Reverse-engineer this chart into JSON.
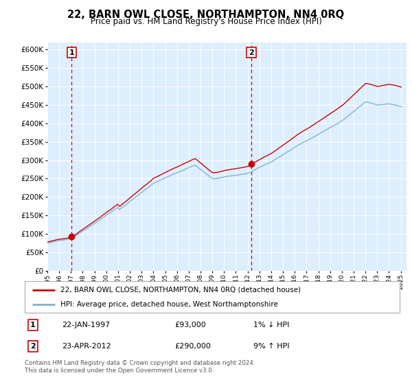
{
  "title": "22, BARN OWL CLOSE, NORTHAMPTON, NN4 0RQ",
  "subtitle": "Price paid vs. HM Land Registry's House Price Index (HPI)",
  "legend_line1": "22, BARN OWL CLOSE, NORTHAMPTON, NN4 0RQ (detached house)",
  "legend_line2": "HPI: Average price, detached house, West Northamptonshire",
  "footer": "Contains HM Land Registry data © Crown copyright and database right 2024.\nThis data is licensed under the Open Government Licence v3.0.",
  "sale1_label": "1",
  "sale1_date": "22-JAN-1997",
  "sale1_price": "£93,000",
  "sale1_hpi": "1% ↓ HPI",
  "sale2_label": "2",
  "sale2_date": "23-APR-2012",
  "sale2_price": "£290,000",
  "sale2_hpi": "9% ↑ HPI",
  "sale1_year": 1997.06,
  "sale2_year": 2012.31,
  "sale1_value": 93000,
  "sale2_value": 290000,
  "hpi_color": "#7db5d8",
  "price_color": "#cc0000",
  "dashed_color": "#cc0000",
  "bg_color": "#ddeeff",
  "ylim_min": 0,
  "ylim_max": 620000,
  "yticks": [
    0,
    50000,
    100000,
    150000,
    200000,
    250000,
    300000,
    350000,
    400000,
    450000,
    500000,
    550000,
    600000
  ],
  "xlim_min": 1995.0,
  "xlim_max": 2025.5,
  "xticks": [
    1995,
    1996,
    1997,
    1998,
    1999,
    2000,
    2001,
    2002,
    2003,
    2004,
    2005,
    2006,
    2007,
    2008,
    2009,
    2010,
    2011,
    2012,
    2013,
    2014,
    2015,
    2016,
    2017,
    2018,
    2019,
    2020,
    2021,
    2022,
    2023,
    2024,
    2025
  ]
}
